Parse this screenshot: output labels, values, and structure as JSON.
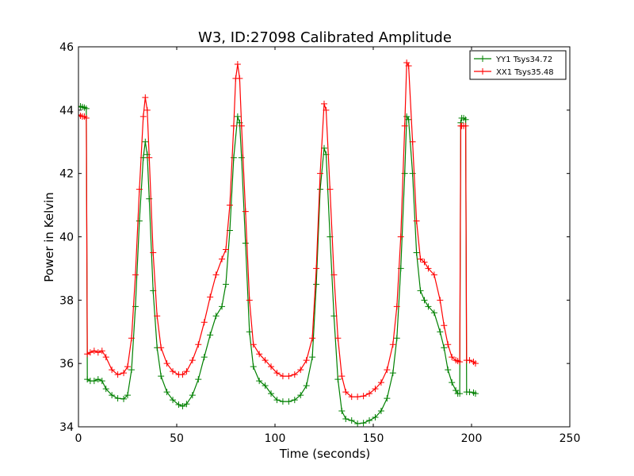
{
  "chart_data": {
    "type": "line",
    "title": "W3, ID:27098 Calibrated Amplitude",
    "xlabel": "Time (seconds)",
    "ylabel": "Power in Kelvin",
    "xlim": [
      0,
      250
    ],
    "ylim": [
      34,
      46
    ],
    "xticks": [
      "0",
      "50",
      "100",
      "150",
      "200",
      "250"
    ],
    "yticks": [
      "34",
      "36",
      "38",
      "40",
      "42",
      "44",
      "46"
    ],
    "grid": false,
    "legend_position": "top-right",
    "series": [
      {
        "name": "YY1 Tsys34.72",
        "color": "#008000",
        "marker": "+",
        "points": [
          [
            0,
            44.1
          ],
          [
            1,
            44.12
          ],
          [
            2,
            44.1
          ],
          [
            3,
            44.08
          ],
          [
            4,
            44.05
          ],
          [
            4.5,
            35.5
          ],
          [
            6,
            35.45
          ],
          [
            8,
            35.45
          ],
          [
            10,
            35.5
          ],
          [
            12,
            35.45
          ],
          [
            14,
            35.2
          ],
          [
            17,
            35
          ],
          [
            20,
            34.9
          ],
          [
            23,
            34.88
          ],
          [
            25,
            35
          ],
          [
            27,
            35.8
          ],
          [
            29,
            37.8
          ],
          [
            31,
            40.5
          ],
          [
            33,
            42.5
          ],
          [
            34,
            43
          ],
          [
            35,
            42.6
          ],
          [
            36,
            41.2
          ],
          [
            38,
            38.3
          ],
          [
            40,
            36.5
          ],
          [
            42,
            35.6
          ],
          [
            45,
            35.1
          ],
          [
            48,
            34.85
          ],
          [
            51,
            34.7
          ],
          [
            53,
            34.65
          ],
          [
            55,
            34.72
          ],
          [
            58,
            35
          ],
          [
            61,
            35.5
          ],
          [
            64,
            36.2
          ],
          [
            67,
            36.9
          ],
          [
            70,
            37.5
          ],
          [
            73,
            37.8
          ],
          [
            75,
            38.5
          ],
          [
            77,
            40.2
          ],
          [
            79,
            42.5
          ],
          [
            81,
            43.8
          ],
          [
            82,
            43.6
          ],
          [
            83,
            42.5
          ],
          [
            85,
            39.8
          ],
          [
            87,
            37
          ],
          [
            89,
            35.9
          ],
          [
            92,
            35.45
          ],
          [
            95,
            35.3
          ],
          [
            98,
            35.05
          ],
          [
            101,
            34.85
          ],
          [
            104,
            34.8
          ],
          [
            107,
            34.8
          ],
          [
            110,
            34.85
          ],
          [
            113,
            35
          ],
          [
            116,
            35.3
          ],
          [
            119,
            36.2
          ],
          [
            121,
            38.5
          ],
          [
            123,
            41.5
          ],
          [
            125,
            42.8
          ],
          [
            126,
            42.6
          ],
          [
            128,
            40
          ],
          [
            130,
            37.5
          ],
          [
            132,
            35.5
          ],
          [
            134,
            34.5
          ],
          [
            136,
            34.25
          ],
          [
            139,
            34.2
          ],
          [
            142,
            34.1
          ],
          [
            145,
            34.12
          ],
          [
            148,
            34.2
          ],
          [
            151,
            34.3
          ],
          [
            154,
            34.5
          ],
          [
            157,
            34.9
          ],
          [
            160,
            35.7
          ],
          [
            162,
            36.8
          ],
          [
            164,
            39
          ],
          [
            166,
            42
          ],
          [
            167,
            43.8
          ],
          [
            168,
            43.7
          ],
          [
            170,
            42
          ],
          [
            172,
            39.5
          ],
          [
            174,
            38.3
          ],
          [
            176,
            38
          ],
          [
            178,
            37.8
          ],
          [
            181,
            37.6
          ],
          [
            184,
            37
          ],
          [
            186,
            36.5
          ],
          [
            188,
            35.8
          ],
          [
            190,
            35.4
          ],
          [
            192,
            35.15
          ],
          [
            193,
            35.05
          ],
          [
            194,
            35.05
          ],
          [
            194.5,
            43.6
          ],
          [
            195,
            43.75
          ],
          [
            196,
            43.75
          ],
          [
            197,
            43.7
          ],
          [
            197.5,
            35.1
          ],
          [
            199,
            35.1
          ],
          [
            201,
            35.08
          ],
          [
            202,
            35.05
          ]
        ]
      },
      {
        "name": "XX1 Tsys35.48",
        "color": "#ff0000",
        "marker": "+",
        "points": [
          [
            0,
            43.85
          ],
          [
            1,
            43.82
          ],
          [
            2,
            43.8
          ],
          [
            3,
            43.8
          ],
          [
            4,
            43.75
          ],
          [
            4.5,
            36.3
          ],
          [
            6,
            36.35
          ],
          [
            8,
            36.4
          ],
          [
            10,
            36.35
          ],
          [
            12,
            36.4
          ],
          [
            14,
            36.2
          ],
          [
            17,
            35.8
          ],
          [
            20,
            35.65
          ],
          [
            23,
            35.7
          ],
          [
            25,
            35.9
          ],
          [
            27,
            36.8
          ],
          [
            29,
            38.8
          ],
          [
            31,
            41.5
          ],
          [
            33,
            43.8
          ],
          [
            34,
            44.4
          ],
          [
            35,
            44
          ],
          [
            36,
            42.5
          ],
          [
            38,
            39.5
          ],
          [
            40,
            37.5
          ],
          [
            42,
            36.5
          ],
          [
            45,
            36
          ],
          [
            48,
            35.75
          ],
          [
            51,
            35.65
          ],
          [
            53,
            35.65
          ],
          [
            55,
            35.75
          ],
          [
            58,
            36.1
          ],
          [
            61,
            36.6
          ],
          [
            64,
            37.3
          ],
          [
            67,
            38.1
          ],
          [
            70,
            38.8
          ],
          [
            73,
            39.3
          ],
          [
            75,
            39.6
          ],
          [
            77,
            41
          ],
          [
            79,
            43.5
          ],
          [
            80,
            45
          ],
          [
            81,
            45.45
          ],
          [
            82,
            45
          ],
          [
            83,
            43.5
          ],
          [
            85,
            40.8
          ],
          [
            87,
            38
          ],
          [
            89,
            36.6
          ],
          [
            92,
            36.3
          ],
          [
            95,
            36.1
          ],
          [
            98,
            35.9
          ],
          [
            101,
            35.7
          ],
          [
            104,
            35.6
          ],
          [
            107,
            35.6
          ],
          [
            110,
            35.65
          ],
          [
            113,
            35.8
          ],
          [
            116,
            36.1
          ],
          [
            119,
            36.8
          ],
          [
            121,
            39
          ],
          [
            123,
            42
          ],
          [
            125,
            44.2
          ],
          [
            126,
            44
          ],
          [
            128,
            41.5
          ],
          [
            130,
            38.8
          ],
          [
            132,
            36.8
          ],
          [
            134,
            35.6
          ],
          [
            136,
            35.1
          ],
          [
            139,
            34.95
          ],
          [
            142,
            34.95
          ],
          [
            145,
            34.97
          ],
          [
            148,
            35.05
          ],
          [
            151,
            35.2
          ],
          [
            154,
            35.4
          ],
          [
            157,
            35.8
          ],
          [
            160,
            36.6
          ],
          [
            162,
            37.8
          ],
          [
            164,
            40
          ],
          [
            166,
            43.5
          ],
          [
            167,
            45.5
          ],
          [
            168,
            45.4
          ],
          [
            170,
            43
          ],
          [
            172,
            40.5
          ],
          [
            174,
            39.3
          ],
          [
            176,
            39.2
          ],
          [
            178,
            39
          ],
          [
            181,
            38.8
          ],
          [
            184,
            38
          ],
          [
            186,
            37.2
          ],
          [
            188,
            36.6
          ],
          [
            190,
            36.2
          ],
          [
            192,
            36.1
          ],
          [
            193,
            36.08
          ],
          [
            194,
            36.05
          ],
          [
            194.5,
            43.5
          ],
          [
            195,
            43.5
          ],
          [
            196,
            43.5
          ],
          [
            197,
            43.5
          ],
          [
            197.5,
            36.1
          ],
          [
            199,
            36.1
          ],
          [
            201,
            36.05
          ],
          [
            202,
            36
          ]
        ]
      }
    ]
  }
}
